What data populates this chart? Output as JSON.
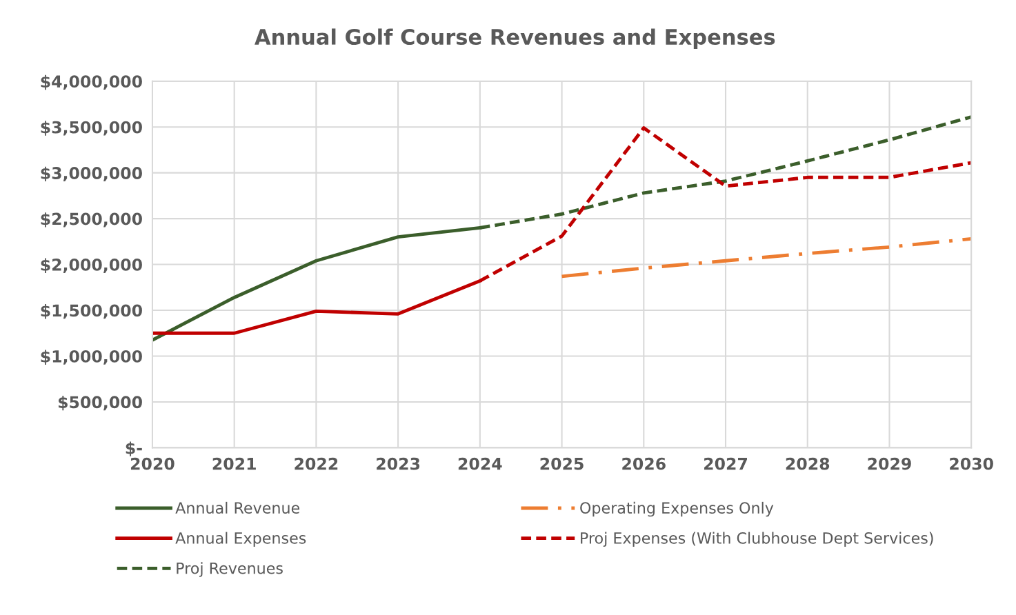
{
  "chart_data": {
    "type": "line",
    "title": "Annual Golf Course Revenues and Expenses",
    "x": [
      2020,
      2021,
      2022,
      2023,
      2024,
      2025,
      2026,
      2027,
      2028,
      2029,
      2030
    ],
    "series": [
      {
        "name": "Annual Revenue",
        "color": "#3b5e2b",
        "line_style": "solid",
        "values": [
          1175000,
          1640000,
          2040000,
          2300000,
          2400000,
          null,
          null,
          null,
          null,
          null,
          null
        ]
      },
      {
        "name": "Annual Expenses",
        "color": "#c00000",
        "line_style": "solid",
        "values": [
          1250000,
          1250000,
          1490000,
          1460000,
          1820000,
          null,
          null,
          null,
          null,
          null,
          null
        ]
      },
      {
        "name": "Proj Revenues",
        "color": "#3b5e2b",
        "line_style": "dashed",
        "values": [
          null,
          null,
          null,
          null,
          2400000,
          2550000,
          2780000,
          2910000,
          3130000,
          3360000,
          3610000
        ]
      },
      {
        "name": "Operating Expenses Only",
        "color": "#ed7d31",
        "line_style": "dashdot",
        "values": [
          null,
          null,
          null,
          null,
          null,
          1870000,
          1960000,
          2040000,
          2120000,
          2190000,
          2280000
        ]
      },
      {
        "name": "Proj Expenses (With Clubhouse Dept Services)",
        "color": "#c00000",
        "line_style": "dashed",
        "values": [
          null,
          null,
          null,
          null,
          1820000,
          2310000,
          3490000,
          2855000,
          2950000,
          2950000,
          3110000
        ]
      }
    ],
    "xlim": [
      2020,
      2030
    ],
    "xticks": [
      2020,
      2021,
      2022,
      2023,
      2024,
      2025,
      2026,
      2027,
      2028,
      2029,
      2030
    ],
    "ylim": [
      0,
      4000000
    ],
    "yticks": [
      {
        "value": 0,
        "label": "$-"
      },
      {
        "value": 500000,
        "label": "$500,000"
      },
      {
        "value": 1000000,
        "label": "$1,000,000"
      },
      {
        "value": 1500000,
        "label": "$1,500,000"
      },
      {
        "value": 2000000,
        "label": "$2,000,000"
      },
      {
        "value": 2500000,
        "label": "$2,500,000"
      },
      {
        "value": 3000000,
        "label": "$3,000,000"
      },
      {
        "value": 3500000,
        "label": "$3,500,000"
      },
      {
        "value": 4000000,
        "label": "$4,000,000"
      }
    ],
    "grid": true,
    "legend": "bottom",
    "marker": "none"
  }
}
